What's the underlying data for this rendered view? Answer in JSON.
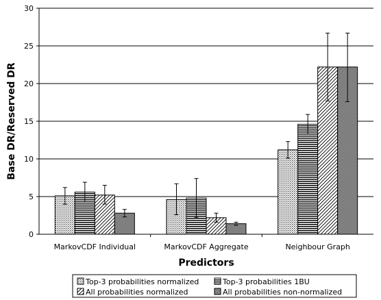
{
  "chart_data": {
    "type": "bar",
    "title": "",
    "xlabel": "Predictors",
    "ylabel": "Base DR/Reserved DR",
    "ylim": [
      0,
      30
    ],
    "yticks": [
      0,
      5,
      10,
      15,
      20,
      25,
      30
    ],
    "grid": "horizontal",
    "legend_position": "bottom",
    "categories": [
      "MarkovCDF Individual",
      "MarkovCDF Aggregate",
      "Neighbour Graph"
    ],
    "series": [
      {
        "name": "Top-3 probabilities normalized",
        "pattern": "dots",
        "values": [
          5.1,
          4.6,
          11.2
        ],
        "error_low": [
          4.0,
          2.6,
          10.1
        ],
        "error_high": [
          6.2,
          6.7,
          12.3
        ]
      },
      {
        "name": "Top-3 probabilities 1BU",
        "pattern": "horizontal-lines",
        "values": [
          5.6,
          4.8,
          14.6
        ],
        "error_low": [
          4.3,
          2.2,
          13.3
        ],
        "error_high": [
          6.9,
          7.4,
          15.9
        ]
      },
      {
        "name": "All probabilities normalized",
        "pattern": "diagonal-lines",
        "values": [
          5.2,
          2.2,
          22.2
        ],
        "error_low": [
          4.0,
          1.6,
          17.7
        ],
        "error_high": [
          6.5,
          2.8,
          26.7
        ]
      },
      {
        "name": "All probabilities non-normalized",
        "pattern": "checker",
        "values": [
          2.8,
          1.4,
          22.2
        ],
        "error_low": [
          2.3,
          1.2,
          17.6
        ],
        "error_high": [
          3.3,
          1.6,
          26.7
        ]
      }
    ]
  }
}
